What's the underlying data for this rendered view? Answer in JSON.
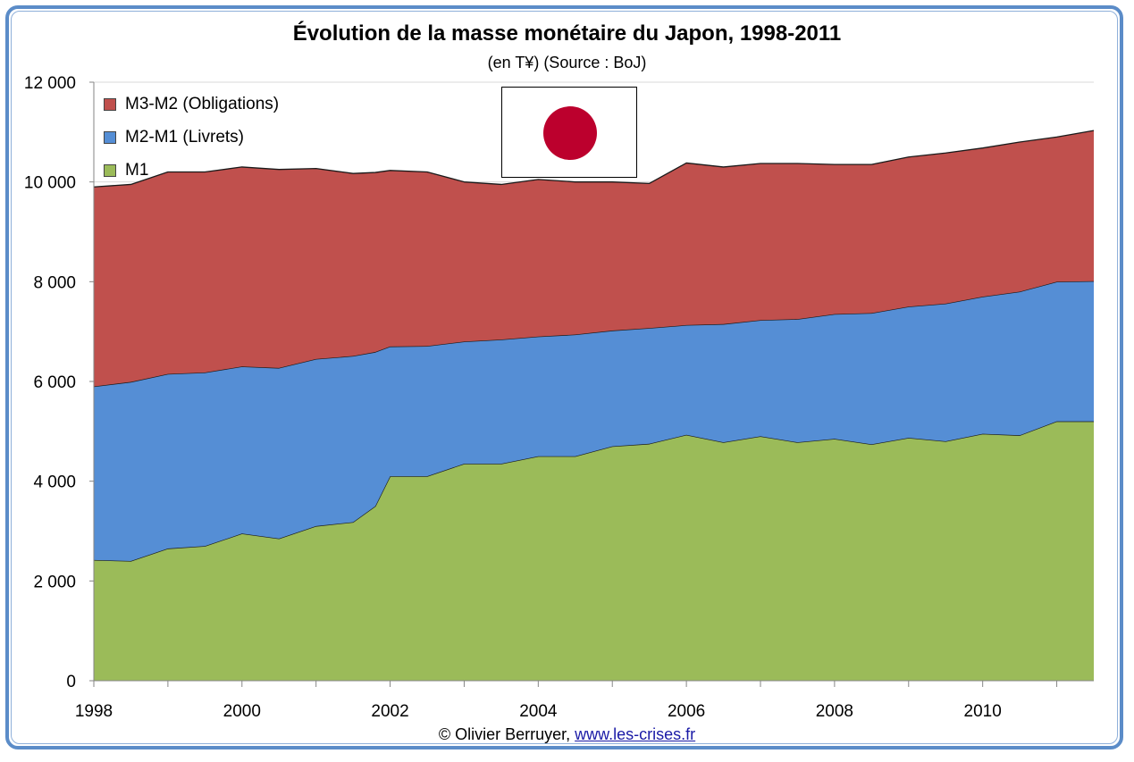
{
  "chart_data": {
    "type": "area",
    "stacked": true,
    "title": "Évolution de la masse monétaire du Japon, 1998-2011",
    "subtitle": "(en T¥) (Source : BoJ)",
    "xlabel": "",
    "ylabel": "",
    "xlim": [
      1998,
      2011.5
    ],
    "ylim": [
      0,
      12000
    ],
    "grid": true,
    "legend_position": "top-left",
    "y_ticks": [
      0,
      2000,
      4000,
      6000,
      8000,
      10000,
      12000
    ],
    "y_tick_labels": [
      "0",
      "2 000",
      "4 000",
      "6 000",
      "8 000",
      "10 000",
      "12 000"
    ],
    "x_ticks": [
      1998,
      1999,
      2000,
      2001,
      2002,
      2003,
      2004,
      2005,
      2006,
      2007,
      2008,
      2009,
      2010,
      2011
    ],
    "x_tick_labels": [
      "1998",
      "2000",
      "2002",
      "2004",
      "2006",
      "2008",
      "2010"
    ],
    "x_labeled_ticks": [
      1998,
      2000,
      2002,
      2004,
      2006,
      2008,
      2010
    ],
    "x": [
      1998,
      1998.5,
      1999,
      1999.5,
      2000,
      2000.5,
      2001,
      2001.5,
      2001.8,
      2002,
      2002.5,
      2003,
      2003.5,
      2004,
      2004.5,
      2005,
      2005.5,
      2006,
      2006.5,
      2007,
      2007.5,
      2008,
      2008.5,
      2009,
      2009.5,
      2010,
      2010.5,
      2011,
      2011.5
    ],
    "series": [
      {
        "name": "M1",
        "color": "#9bbb59",
        "values": [
          2420,
          2400,
          2650,
          2700,
          2950,
          2850,
          3100,
          3180,
          3500,
          4100,
          4100,
          4350,
          4350,
          4500,
          4500,
          4700,
          4750,
          4930,
          4780,
          4900,
          4780,
          4850,
          4740,
          4870,
          4800,
          4950,
          4920,
          5200,
          5200
        ]
      },
      {
        "name": "M2-M1 (Livrets)",
        "color": "#558ed5",
        "values": [
          3480,
          3590,
          3500,
          3480,
          3350,
          3420,
          3350,
          3330,
          3090,
          2600,
          2610,
          2450,
          2490,
          2400,
          2440,
          2320,
          2320,
          2200,
          2370,
          2330,
          2470,
          2500,
          2630,
          2630,
          2760,
          2750,
          2880,
          2800,
          2810
        ]
      },
      {
        "name": "M3-M2 (Obligations)",
        "color": "#c0504d",
        "values": [
          4000,
          3960,
          4050,
          4020,
          4000,
          3980,
          3820,
          3660,
          3600,
          3530,
          3490,
          3200,
          3110,
          3150,
          3060,
          2980,
          2900,
          3250,
          3150,
          3140,
          3120,
          3000,
          2980,
          3000,
          3020,
          2980,
          3000,
          2900,
          3020
        ]
      }
    ],
    "legend": [
      "M3-M2 (Obligations)",
      "M2-M1 (Livrets)",
      "M1"
    ]
  },
  "header": {
    "title": "Évolution de la masse monétaire du Japon, 1998-2011",
    "subtitle": "(en T¥) (Source : BoJ)"
  },
  "legend": {
    "items": [
      {
        "label": "M3-M2 (Obligations)",
        "color": "#c0504d"
      },
      {
        "label": "M2-M1 (Livrets)",
        "color": "#558ed5"
      },
      {
        "label": "M1",
        "color": "#9bbb59"
      }
    ]
  },
  "flag": {
    "icon": "japan-flag-icon",
    "sun_color": "#bc002d"
  },
  "footer": {
    "credit": "© Olivier Berruyer,",
    "link": "www.les-crises.fr"
  }
}
